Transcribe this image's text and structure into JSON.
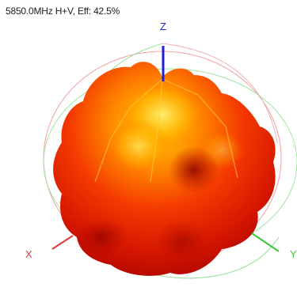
{
  "title": "5850.0MHz H+V, Eff: 42.5%",
  "chart_data": {
    "type": "3d-radiation-pattern",
    "title": "5850.0MHz H+V, Eff: 42.5%",
    "frequency_mhz": 5850.0,
    "polarization": "H+V",
    "efficiency_percent": 42.5,
    "axes": [
      {
        "name": "Z",
        "color": "#1f1fd6"
      },
      {
        "name": "X",
        "color": "#e03a3a"
      },
      {
        "name": "Y",
        "color": "#3cc43c"
      }
    ],
    "colormap": [
      "#b00000",
      "#e21a00",
      "#ff4500",
      "#ff8c00",
      "#ffd400"
    ]
  }
}
